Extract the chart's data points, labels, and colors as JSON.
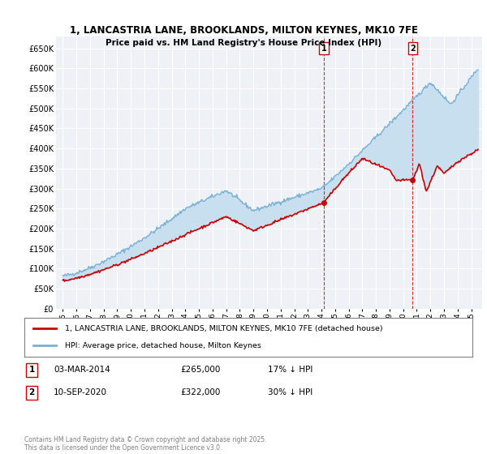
{
  "title": "1, LANCASTRIA LANE, BROOKLANDS, MILTON KEYNES, MK10 7FE",
  "subtitle": "Price paid vs. HM Land Registry's House Price Index (HPI)",
  "ylim": [
    0,
    680000
  ],
  "yticks": [
    0,
    50000,
    100000,
    150000,
    200000,
    250000,
    300000,
    350000,
    400000,
    450000,
    500000,
    550000,
    600000,
    650000
  ],
  "purchase1_year": 2014.17,
  "purchase1_price": 265000,
  "purchase1_label": "1",
  "purchase2_year": 2020.7,
  "purchase2_price": 322000,
  "purchase2_label": "2",
  "red_color": "#cc0000",
  "blue_color": "#7ab0d4",
  "shade_color": "#c8dff0",
  "legend_house": "1, LANCASTRIA LANE, BROOKLANDS, MILTON KEYNES, MK10 7FE (detached house)",
  "legend_hpi": "HPI: Average price, detached house, Milton Keynes",
  "annotation1_date": "03-MAR-2014",
  "annotation1_price": "£265,000",
  "annotation1_pct": "17% ↓ HPI",
  "annotation2_date": "10-SEP-2020",
  "annotation2_price": "£322,000",
  "annotation2_pct": "30% ↓ HPI",
  "footer": "Contains HM Land Registry data © Crown copyright and database right 2025.\nThis data is licensed under the Open Government Licence v3.0.",
  "background_color": "#eef2f7"
}
